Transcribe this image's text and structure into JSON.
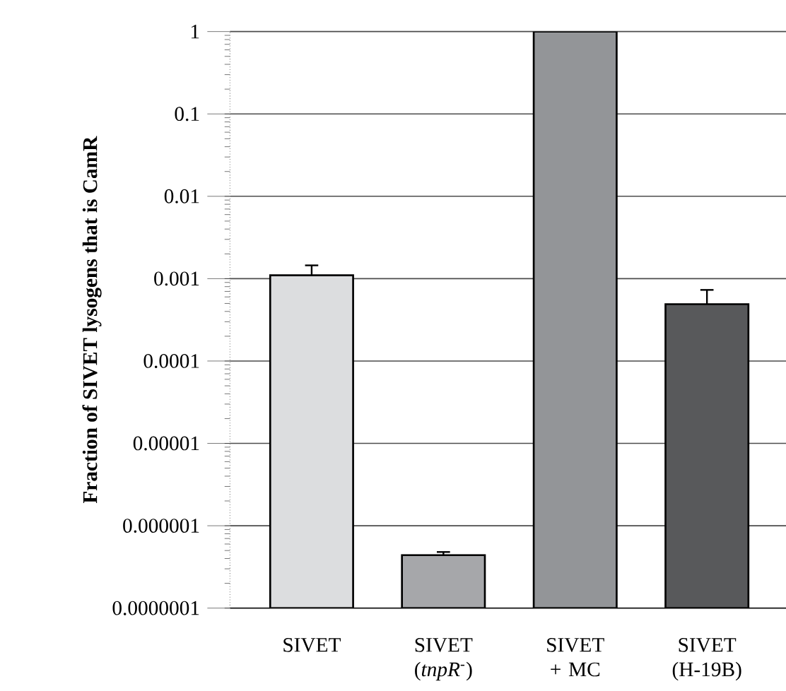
{
  "chart_data": {
    "type": "bar",
    "ylabel": "Fraction of SIVET lysogens that is  CamR",
    "categories": [
      "SIVET",
      "SIVET (*tnpR*$^{-}$)",
      "SIVET + MC",
      "SIVET (H-19B)"
    ],
    "values": [
      0.0011,
      4.4e-07,
      1,
      0.00049
    ],
    "colors": [
      "#dcdddf",
      "#a6a7aa",
      "#939598",
      "#58595b"
    ],
    "errors": [
      [
        0.0011,
        0.00145
      ],
      [
        4.4e-07,
        4.8e-07
      ],
      null,
      [
        0.00049,
        0.00073
      ]
    ],
    "log": true,
    "ylim": [
      1e-07,
      1
    ],
    "yticks": [
      {
        "value": 1e-07,
        "label": "0.0000001"
      },
      {
        "value": 1e-06,
        "label": "0.000001"
      },
      {
        "value": 1e-05,
        "label": "0.00001"
      },
      {
        "value": 0.0001,
        "label": "0.0001"
      },
      {
        "value": 0.001,
        "label": "0.001"
      },
      {
        "value": 0.01,
        "label": "0.01"
      },
      {
        "value": 0.1,
        "label": "0.1"
      },
      {
        "value": 1,
        "label": "1"
      }
    ],
    "grid": "y"
  }
}
